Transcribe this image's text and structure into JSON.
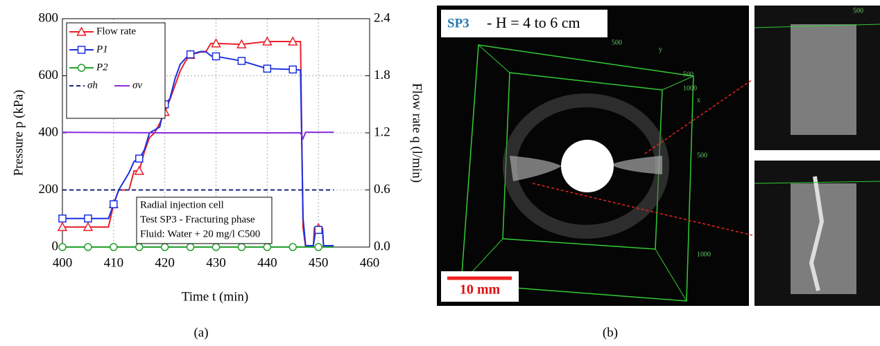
{
  "chart_data": {
    "type": "line",
    "xlabel": "Time t (min)",
    "ylabel": "Pressure p (kPa)",
    "y2label": "Flow rate q (l/min)",
    "xlim": [
      400,
      460
    ],
    "xticks": [
      400,
      410,
      420,
      430,
      440,
      450,
      460
    ],
    "ylim": [
      0,
      800
    ],
    "yticks": [
      0,
      200,
      400,
      600,
      800
    ],
    "y2lim": [
      0,
      2.4
    ],
    "y2ticks": [
      {
        "value": 0,
        "label": "0.0"
      },
      0.6,
      1.2,
      1.8,
      2.4
    ],
    "grid": true,
    "series": [
      {
        "name": "Flow rate",
        "color": "#e8202a",
        "axis": "y2",
        "marker": "triangle",
        "x": [
          400,
          405,
          409,
          410,
          411,
          413,
          414,
          415,
          416,
          417,
          418,
          419,
          420,
          421,
          422,
          423,
          424,
          425,
          427,
          428,
          429,
          430,
          435,
          440,
          445,
          446.5,
          447,
          447.5,
          449,
          449.2,
          450,
          450.8,
          451
        ],
        "values": [
          0.21,
          0.21,
          0.21,
          0.45,
          0.6,
          0.6,
          0.8,
          0.8,
          1.0,
          1.15,
          1.2,
          1.3,
          1.42,
          1.55,
          1.7,
          1.85,
          1.95,
          2.02,
          2.05,
          2.05,
          2.14,
          2.14,
          2.13,
          2.16,
          2.16,
          2.16,
          0.2,
          0,
          0,
          0.2,
          0.2,
          0.2,
          0
        ]
      },
      {
        "name": "P1",
        "color": "#1a2fe0",
        "marker": "square",
        "x": [
          400,
          405,
          409,
          410,
          411,
          412,
          413,
          414,
          415,
          416,
          417,
          418,
          419,
          420,
          421,
          422,
          423,
          424,
          425,
          427,
          428,
          429,
          430,
          435,
          440,
          445,
          446.5,
          447,
          447.5,
          449,
          449.5,
          450,
          450.8,
          451,
          453
        ],
        "values": [
          100,
          100,
          100,
          150,
          200,
          230,
          260,
          300,
          310,
          340,
          400,
          410,
          420,
          500,
          520,
          590,
          640,
          660,
          675,
          685,
          685,
          670,
          668,
          652,
          625,
          622,
          620,
          100,
          5,
          5,
          60,
          60,
          60,
          5,
          5
        ]
      },
      {
        "name": "P2",
        "color": "#22a02a",
        "marker": "circle",
        "x": [
          400,
          405,
          410,
          415,
          420,
          425,
          430,
          435,
          440,
          445,
          450,
          453
        ],
        "values": [
          0,
          0,
          0,
          0,
          0,
          0,
          0,
          0,
          0,
          0,
          0,
          0
        ]
      },
      {
        "name": "σh",
        "color": "#1a237e",
        "line_style": "dashed",
        "x": [
          400,
          446,
          453
        ],
        "values": [
          200,
          200,
          200
        ]
      },
      {
        "name": "σv",
        "color": "#8a2be2",
        "x": [
          400,
          420,
          446.5,
          447,
          447.5,
          453
        ],
        "values": [
          402,
          400,
          400,
          380,
          402,
          402
        ]
      }
    ],
    "annotation": [
      "Radial injection cell",
      "Test SP3 - Fracturing phase",
      "Fluid: Water + 20 mg/l C500"
    ],
    "caption": "(a)"
  },
  "panel_b": {
    "test": "SP3",
    "label_rest": "- H = 4 to 6 cm",
    "scale": "10 mm",
    "axis_labels": [
      "500",
      "y",
      "500",
      "1000",
      "x",
      "500",
      "1000",
      "500"
    ],
    "caption": "(b)"
  }
}
